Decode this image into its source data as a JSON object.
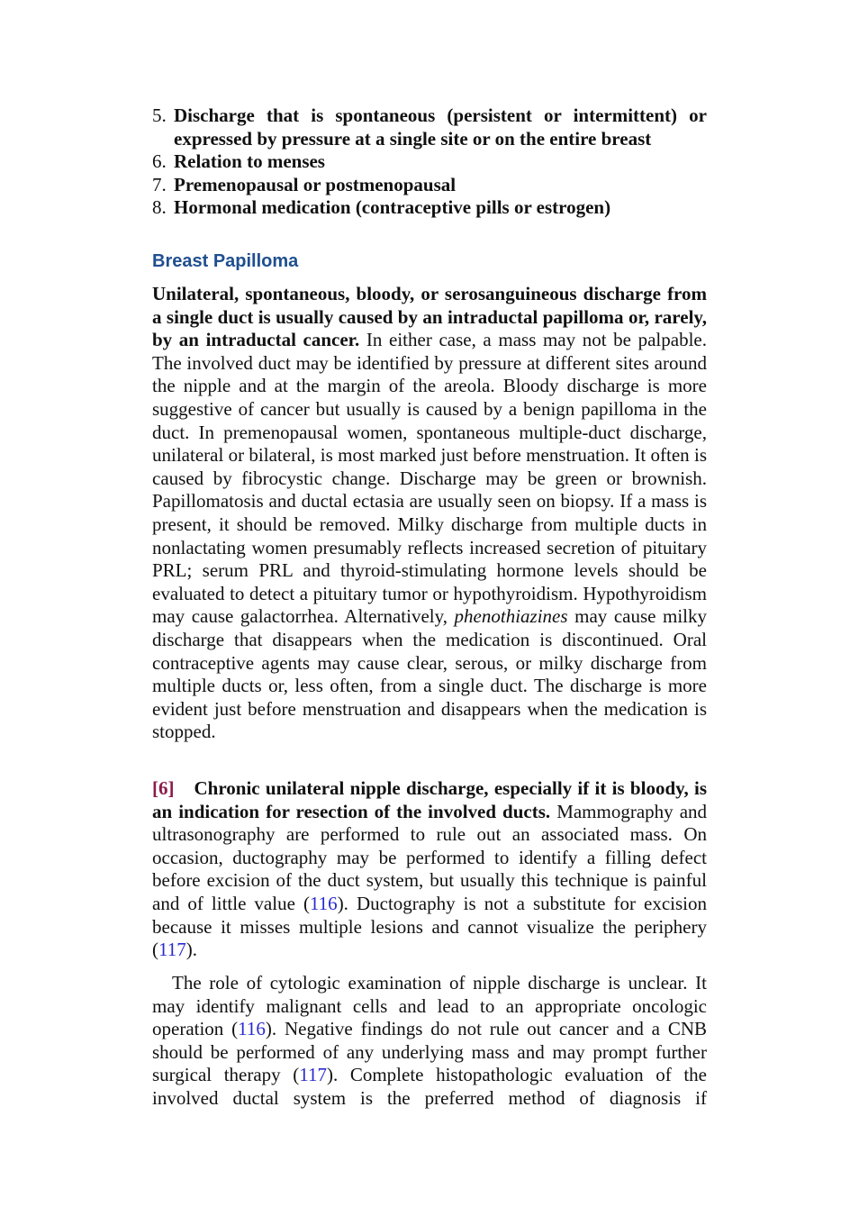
{
  "list": [
    {
      "number": "5.",
      "text": "Discharge that is spontaneous (persistent or intermittent) or expressed by pressure at a single site or on the entire breast"
    },
    {
      "number": "6.",
      "text": "Relation to menses"
    },
    {
      "number": "7.",
      "text": "Premenopausal or postmenopausal"
    },
    {
      "number": "8.",
      "text": "Hormonal medication (contraceptive pills or estrogen)"
    }
  ],
  "heading": "Breast Papilloma",
  "paragraph_1": {
    "lead": "Unilateral, spontaneous, bloody, or serosanguineous discharge from a single duct is usually caused by an intraductal papilloma or, rarely, by an intraductal cancer.",
    "text_1": "In either case, a mass may not be palpable. The involved duct may be identified by pressure at different sites around the nipple and at the margin of the areola. Bloody discharge is more suggestive of cancer but usually is caused by a benign papilloma in the duct. In premenopausal women, spontaneous multiple-duct discharge, unilateral or bilateral, is most marked just before menstruation. It often is caused by fibrocystic change. Discharge may be green or brownish. Papillomatosis and ductal ectasia are usually seen on biopsy. If a mass is present, it should be removed. Milky discharge from multiple ducts in nonlactating women presumably reflects increased secretion of pituitary PRL; serum PRL and thyroid-stimulating hormone levels should be evaluated to detect a pituitary tumor or hypothyroidism. Hypothyroidism may cause galactorrhea. Alternatively,",
    "italic": "phenothiazines",
    "text_2": "may cause milky discharge that disappears when the medication is discontinued. Oral contraceptive agents may cause clear, serous, or milky discharge from multiple ducts or, less often, from a single duct. The discharge is more evident just before menstruation and disappears when the medication is stopped."
  },
  "paragraph_2": {
    "marker": "[6]",
    "lead": "Chronic unilateral nipple discharge, especially if it is bloody, is an indication for resection of the involved ducts.",
    "text_1": "Mammography and ultrasonography are performed to rule out an associated mass. On occasion, ductography may be performed to identify a filling defect before excision of the duct system, but usually this technique is painful and of little value (",
    "ref_1": "116",
    "text_2": "). Ductography is not a substitute for excision because it misses multiple lesions and cannot visualize the periphery (",
    "ref_2": "117",
    "text_3": ")."
  },
  "paragraph_3": {
    "text_1": "The role of cytologic examination of nipple discharge is unclear. It may identify malignant cells and lead to an appropriate oncologic operation (",
    "ref_1": "116",
    "text_2": "). Negative findings do not rule out cancer and a CNB should be performed of any underlying mass and may prompt further surgical therapy (",
    "ref_2": "117",
    "text_3": "). Complete histopathologic evaluation of the involved ductal system is the preferred method of diagnosis if"
  }
}
